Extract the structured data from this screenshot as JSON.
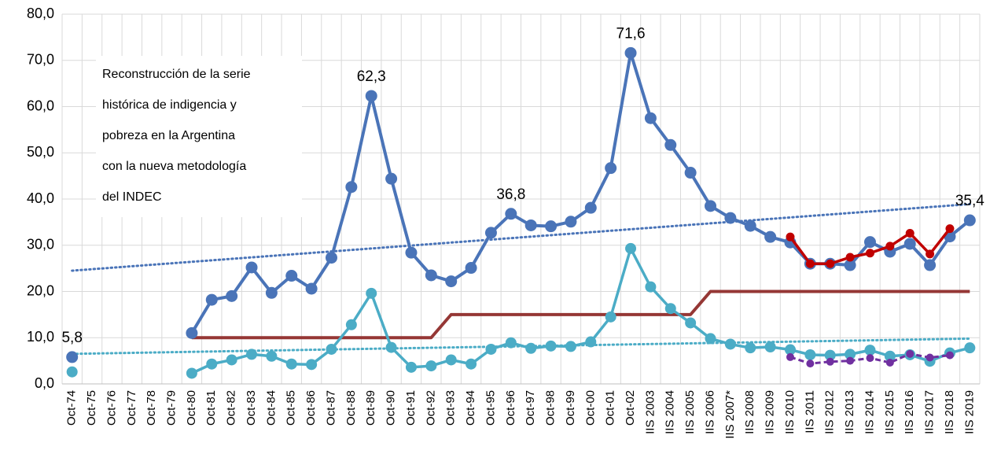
{
  "chart_data": {
    "type": "line",
    "categories": [
      "Oct-74",
      "Oct-75",
      "Oct-76",
      "Oct-77",
      "Oct-78",
      "Oct-79",
      "Oct-80",
      "Oct-81",
      "Oct-82",
      "Oct-83",
      "Oct-84",
      "Oct-85",
      "Oct-86",
      "Oct-87",
      "Oct-88",
      "Oct-89",
      "Oct-90",
      "Oct-91",
      "Oct-92",
      "Oct-93",
      "Oct-94",
      "Oct-95",
      "Oct-96",
      "Oct-97",
      "Oct-98",
      "Oct-99",
      "Oct-00",
      "Oct-01",
      "Oct-02",
      "IIS 2003",
      "IIS 2004",
      "IIS 2005",
      "IIS 2006",
      "IIS 2007*",
      "IIS 2008",
      "IIS 2009",
      "IIS 2010",
      "IIS 2011",
      "IIS 2012",
      "IIS 2013",
      "IIS 2014",
      "IIS 2015",
      "IIS 2016",
      "IIS 2017",
      "IIS 2018",
      "IIS 2019"
    ],
    "series": [
      {
        "color": "#4a74b8",
        "width": 4,
        "marker": 7.5,
        "values": [
          5.8,
          null,
          null,
          null,
          null,
          null,
          11.0,
          18.2,
          19.0,
          25.2,
          19.7,
          23.4,
          20.6,
          27.3,
          42.6,
          62.3,
          44.4,
          28.4,
          23.5,
          22.2,
          25.1,
          32.7,
          36.8,
          34.3,
          34.1,
          35.1,
          38.1,
          46.7,
          71.6,
          57.5,
          51.7,
          45.7,
          38.5,
          35.9,
          34.2,
          31.8,
          30.6,
          26.0,
          26.0,
          25.7,
          30.7,
          28.6,
          30.3,
          25.7,
          31.9,
          35.4
        ],
        "value_labels": [
          "5,8",
          null,
          null,
          null,
          null,
          null,
          null,
          null,
          null,
          null,
          null,
          null,
          null,
          null,
          null,
          "62,3",
          null,
          null,
          null,
          null,
          null,
          null,
          "36,8",
          null,
          null,
          null,
          null,
          null,
          "71,6",
          null,
          null,
          null,
          null,
          null,
          null,
          null,
          null,
          null,
          null,
          null,
          null,
          null,
          null,
          null,
          null,
          "35,4"
        ]
      },
      {
        "color": "#4bacc6",
        "width": 3.5,
        "marker": 7,
        "values": [
          2.6,
          null,
          null,
          null,
          null,
          null,
          2.3,
          4.3,
          5.2,
          6.4,
          6.0,
          4.3,
          4.2,
          7.5,
          12.8,
          19.6,
          7.9,
          3.6,
          3.9,
          5.2,
          4.3,
          7.5,
          8.9,
          7.7,
          8.2,
          8.1,
          9.1,
          14.5,
          29.3,
          21.0,
          16.3,
          13.2,
          9.8,
          8.6,
          7.8,
          8.0,
          7.4,
          6.3,
          6.2,
          6.4,
          7.3,
          6.0,
          6.3,
          4.9,
          6.7,
          7.8
        ]
      },
      {
        "color": "#c00000",
        "width": 3.5,
        "marker": 5.5,
        "values": [
          null,
          null,
          null,
          null,
          null,
          null,
          null,
          null,
          null,
          null,
          null,
          null,
          null,
          null,
          null,
          null,
          null,
          null,
          null,
          null,
          null,
          null,
          null,
          null,
          null,
          null,
          null,
          null,
          null,
          null,
          null,
          null,
          null,
          null,
          null,
          null,
          31.8,
          26.0,
          26.0,
          27.4,
          28.3,
          29.8,
          32.6,
          28.1,
          33.6,
          null
        ]
      },
      {
        "color": "#7030a0",
        "width": 3,
        "marker": 5,
        "dashed": true,
        "values": [
          null,
          null,
          null,
          null,
          null,
          null,
          null,
          null,
          null,
          null,
          null,
          null,
          null,
          null,
          null,
          null,
          null,
          null,
          null,
          null,
          null,
          null,
          null,
          null,
          null,
          null,
          null,
          null,
          null,
          null,
          null,
          null,
          null,
          null,
          null,
          null,
          5.8,
          4.4,
          4.8,
          5.0,
          5.6,
          4.6,
          6.5,
          5.7,
          6.2,
          null
        ]
      },
      {
        "color": "#953735",
        "width": 4,
        "marker": 0,
        "values": [
          null,
          null,
          null,
          null,
          null,
          null,
          10,
          10,
          10,
          10,
          10,
          10,
          10,
          10,
          10,
          10,
          10,
          10,
          10,
          15,
          15,
          15,
          15,
          15,
          15,
          15,
          15,
          15,
          15,
          15,
          15,
          15,
          20,
          20,
          20,
          20,
          20,
          20,
          20,
          20,
          20,
          20,
          20,
          20,
          20,
          20
        ]
      }
    ],
    "trendlines": [
      {
        "color": "#4a74b8",
        "values": [
          24.5,
          38.9
        ]
      },
      {
        "color": "#4bacc6",
        "values": [
          6.5,
          9.8
        ]
      }
    ],
    "annotation": [
      "Reconstrucción de la serie",
      "histórica de indigencia y",
      "pobreza en la Argentina",
      "con la nueva metodología",
      "del INDEC"
    ],
    "ylim": [
      0,
      80
    ],
    "yticks": [
      {
        "value": 0,
        "label": "0,0"
      },
      {
        "value": 10,
        "label": "10,0"
      },
      {
        "value": 20,
        "label": "20,0"
      },
      {
        "value": 30,
        "label": "30,0"
      },
      {
        "value": 40,
        "label": "40,0"
      },
      {
        "value": 50,
        "label": "50,0"
      },
      {
        "value": 60,
        "label": "60,0"
      },
      {
        "value": 70,
        "label": "70,0"
      },
      {
        "value": 80,
        "label": "80,0"
      }
    ],
    "grid": true
  }
}
